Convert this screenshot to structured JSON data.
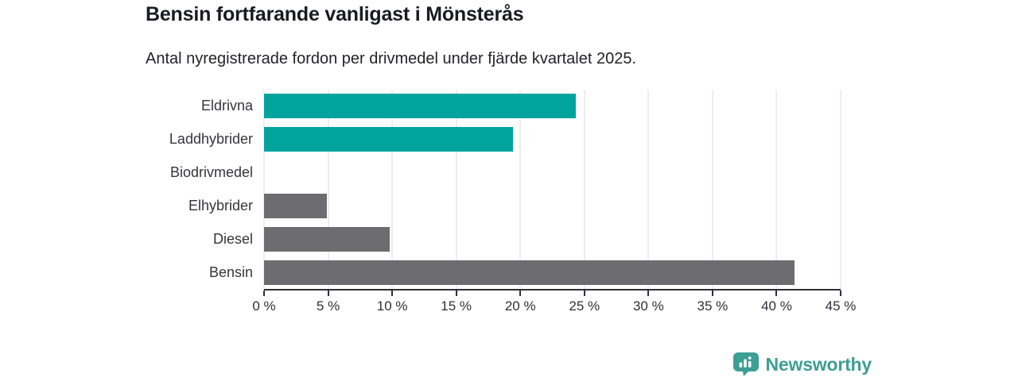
{
  "header": {
    "title": "Bensin fortfarande vanligast i Mönsterås",
    "subtitle": "Antal nyregistrerade fordon per drivmedel under fjärde kvartalet 2025."
  },
  "chart_data": {
    "type": "bar",
    "orientation": "horizontal",
    "title": "Bensin fortfarande vanligast i Mönsterås",
    "subtitle": "Antal nyregistrerade fordon per drivmedel under fjärde kvartalet 2025.",
    "categories": [
      "Eldrivna",
      "Laddhybrider",
      "Biodrivmedel",
      "Elhybrider",
      "Diesel",
      "Bensin"
    ],
    "values": [
      24.3,
      19.4,
      0,
      4.9,
      9.8,
      41.4
    ],
    "unit": "%",
    "bar_colors": [
      "#00a49c",
      "#00a49c",
      "#6d6c71",
      "#6d6c71",
      "#6d6c71",
      "#6d6c71"
    ],
    "xlabel": "",
    "ylabel": "",
    "xlim": [
      0,
      45
    ],
    "tick_step": 5,
    "x_tick_labels": [
      "0 %",
      "5 %",
      "10 %",
      "15 %",
      "20 %",
      "25 %",
      "30 %",
      "35 %",
      "40 %",
      "45 %"
    ],
    "grid": true,
    "legend": false
  },
  "colors": {
    "teal": "#00a49c",
    "gray": "#6d6c71",
    "grid": "#dcdcdf",
    "axis": "#30303a",
    "brand": "#3d9e93"
  },
  "footer": {
    "brand": "Newsworthy"
  }
}
